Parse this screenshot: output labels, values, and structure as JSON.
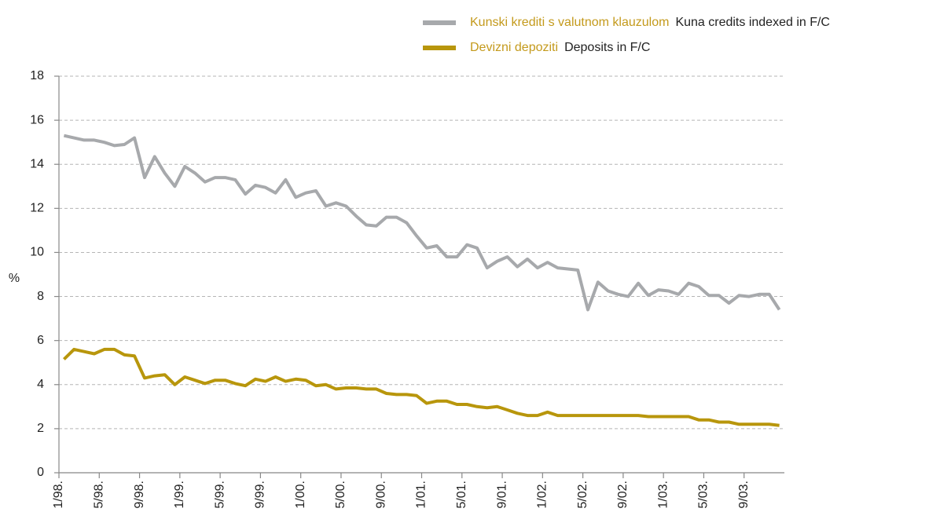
{
  "chart_data": {
    "type": "line",
    "y_label": "%",
    "categories": [
      "1/98.",
      null,
      null,
      null,
      "5/98.",
      null,
      null,
      null,
      "9/98.",
      null,
      null,
      null,
      "1/99.",
      null,
      null,
      null,
      "5/99.",
      null,
      null,
      null,
      "9/99.",
      null,
      null,
      null,
      "1/00.",
      null,
      null,
      null,
      "5/00.",
      null,
      null,
      null,
      "9/00.",
      null,
      null,
      null,
      "1/01.",
      null,
      null,
      null,
      "5/01.",
      null,
      null,
      null,
      "9/01.",
      null,
      null,
      null,
      "1/02.",
      null,
      null,
      null,
      "5/02.",
      null,
      null,
      null,
      "9/02.",
      null,
      null,
      null,
      "1/03.",
      null,
      null,
      null,
      "5/03.",
      null,
      null,
      null,
      "9/03.",
      null,
      null,
      null
    ],
    "series": [
      {
        "name": "Kunski krediti s valutnom klauzulom",
        "name_en": "Kuna credits indexed in F/C",
        "color": "#a7a9ac",
        "values": [
          15.3,
          15.2,
          15.1,
          15.1,
          15.0,
          14.85,
          14.9,
          15.2,
          13.4,
          14.35,
          13.6,
          13.0,
          13.9,
          13.6,
          13.2,
          13.4,
          13.4,
          13.3,
          12.65,
          13.05,
          12.95,
          12.7,
          13.3,
          12.5,
          12.7,
          12.8,
          12.1,
          12.25,
          12.1,
          11.65,
          11.25,
          11.2,
          11.6,
          11.6,
          11.35,
          10.75,
          10.2,
          10.3,
          9.8,
          9.8,
          10.35,
          10.2,
          9.3,
          9.6,
          9.8,
          9.35,
          9.7,
          9.3,
          9.55,
          9.3,
          9.25,
          9.2,
          7.4,
          8.65,
          8.25,
          8.1,
          8.0,
          8.6,
          8.05,
          8.3,
          8.25,
          8.1,
          8.6,
          8.45,
          8.05,
          8.05,
          7.7,
          8.05,
          8.0,
          8.1,
          8.1,
          7.4
        ]
      },
      {
        "name": "Devizni depoziti",
        "name_en": "Deposits in F/C",
        "color": "#b8960c",
        "values": [
          5.15,
          5.6,
          5.5,
          5.4,
          5.6,
          5.6,
          5.35,
          5.3,
          4.3,
          4.4,
          4.45,
          4.0,
          4.35,
          4.2,
          4.05,
          4.2,
          4.2,
          4.05,
          3.95,
          4.25,
          4.15,
          4.35,
          4.15,
          4.25,
          4.2,
          3.95,
          4.0,
          3.8,
          3.85,
          3.85,
          3.8,
          3.8,
          3.6,
          3.55,
          3.55,
          3.5,
          3.15,
          3.25,
          3.25,
          3.1,
          3.1,
          3.0,
          2.95,
          3.0,
          2.85,
          2.7,
          2.6,
          2.6,
          2.75,
          2.6,
          2.6,
          2.6,
          2.6,
          2.6,
          2.6,
          2.6,
          2.6,
          2.6,
          2.55,
          2.55,
          2.55,
          2.55,
          2.55,
          2.4,
          2.4,
          2.3,
          2.3,
          2.2,
          2.2,
          2.2,
          2.2,
          2.15
        ]
      }
    ],
    "ylim": [
      0,
      18
    ],
    "yticks": [
      0,
      2,
      4,
      6,
      8,
      10,
      12,
      14,
      16,
      18
    ],
    "grid": true,
    "legend": "top-right"
  }
}
